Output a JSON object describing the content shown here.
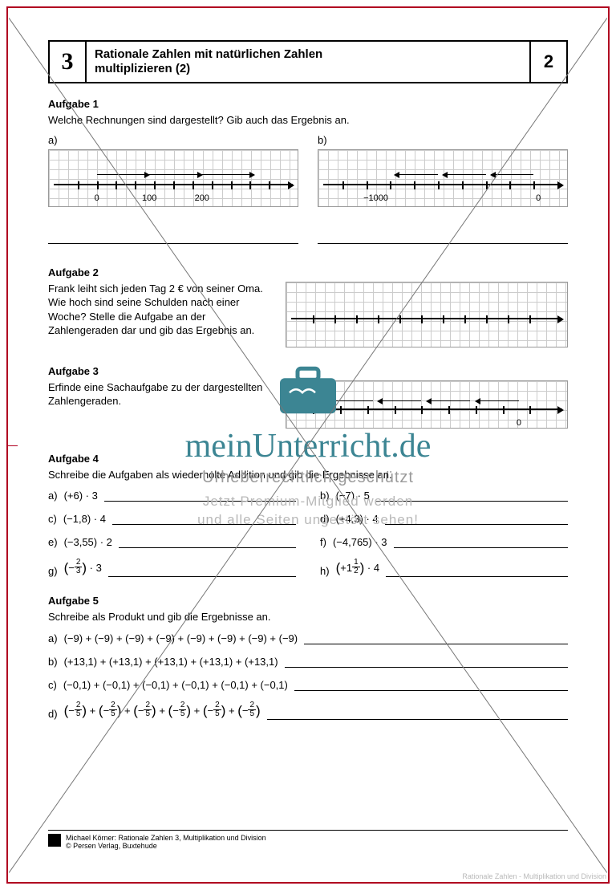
{
  "header": {
    "chapter": "3",
    "title_l1": "Rationale Zahlen mit natürlichen Zahlen",
    "title_l2": "multiplizieren (2)",
    "page": "2"
  },
  "a1": {
    "h": "Aufgabe 1",
    "p": "Welche Rechnungen sind dargestellt? Gib auch das Ergebnis an.",
    "a": "a)",
    "b": "b)",
    "nl_a": {
      "labels": [
        {
          "x": 18,
          "t": "0"
        },
        {
          "x": 40,
          "t": "100"
        },
        {
          "x": 62,
          "t": "200"
        }
      ]
    },
    "nl_b": {
      "labels": [
        {
          "x": 22,
          "t": "−1000"
        },
        {
          "x": 90,
          "t": "0"
        }
      ]
    }
  },
  "a2": {
    "h": "Aufgabe 2",
    "p": "Frank leiht sich jeden Tag 2 € von seiner Oma. Wie hoch sind seine Schulden nach einer Woche? Stelle die Aufgabe an der Zahlengeraden dar und gib das Ergebnis an."
  },
  "a3": {
    "h": "Aufgabe 3",
    "p": "Erfinde eine Sachaufgabe zu der dargestellten Zahlengeraden.",
    "nl": {
      "labels": [
        {
          "x": 84,
          "t": "0"
        }
      ]
    }
  },
  "a4": {
    "h": "Aufgabe 4",
    "p": "Schreibe die Aufgaben als wiederholte Addition und gib die Ergebnisse an.",
    "rows": [
      {
        "l": "a)",
        "le": "(+6) · 3",
        "r": "b)",
        "re": "(−7) · 5"
      },
      {
        "l": "c)",
        "le": "(−1,8) · 4",
        "r": "d)",
        "re": "(+4,3) · 4"
      },
      {
        "l": "e)",
        "le": "(−3,55) · 2",
        "r": "f)",
        "re": "(−4,765) · 3"
      }
    ],
    "frac_row": {
      "l": "g)",
      "lf_n": "2",
      "lf_d": "3",
      "lf_sign": "−",
      "lf_mul": " · 3",
      "r": "h)",
      "rf_pre": "+1",
      "rf_n": "1",
      "rf_d": "2",
      "rf_mul": " · 4"
    }
  },
  "a5": {
    "h": "Aufgabe 5",
    "p": "Schreibe als Produkt und gib die Ergebnisse an.",
    "rows": [
      {
        "l": "a)",
        "e": "(−9) + (−9) + (−9) + (−9) + (−9) + (−9) + (−9) + (−9)"
      },
      {
        "l": "b)",
        "e": "(+13,1) + (+13,1) + (+13,1) + (+13,1) + (+13,1)"
      },
      {
        "l": "c)",
        "e": "(−0,1) + (−0,1) + (−0,1) + (−0,1) + (−0,1) + (−0,1)"
      }
    ],
    "frac_row": {
      "l": "d)",
      "sign": "−",
      "n": "2",
      "d": "5",
      "count": 6
    }
  },
  "footer": {
    "l1": "Michael Körner: Rationale Zahlen 3, Multiplikation und Division",
    "l2": "© Persen Verlag, Buxtehude"
  },
  "wm": {
    "site": "meinUnterricht.de",
    "t1": "Urheberrechtlich geschützt",
    "t2a": "Jetzt Premium-Mitglied werden",
    "t2b": "und alle Seiten ungestört sehen!"
  },
  "caption": "Rationale Zahlen - Multiplikation und Division"
}
